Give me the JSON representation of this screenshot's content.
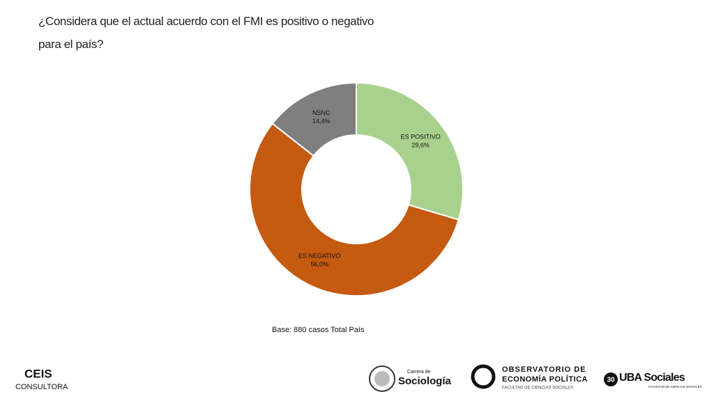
{
  "chart_data": {
    "type": "donut",
    "title": "¿Considera que el actual acuerdo con el FMI es positivo o negativo para el país?",
    "categories": [
      "ES POSITIVO",
      "ES NEGATIVO",
      "NSNC"
    ],
    "values": [
      29.6,
      56.0,
      14.4
    ],
    "value_labels": [
      "29,6%",
      "56,0%",
      "14,4%"
    ],
    "colors": [
      "#a9d18e",
      "#c55a11",
      "#7f7f7f"
    ],
    "note": "Base: 880 casos Total País"
  },
  "logos": {
    "ceis": "CEIS",
    "ceis_sub": "CONSULTORA",
    "soc_top": "Carrera de",
    "soc_main": "Sociología",
    "obs_1": "OBSERVATORIO DE",
    "obs_2": "ECONOMÍA POLÍTICA",
    "obs_3": "FACULTAD DE CIENCIAS SOCIALES",
    "uba_num": "30",
    "uba_main": "UBA Sociales",
    "uba_sub": "FACULTAD DE CIENCIAS SOCIALES"
  }
}
